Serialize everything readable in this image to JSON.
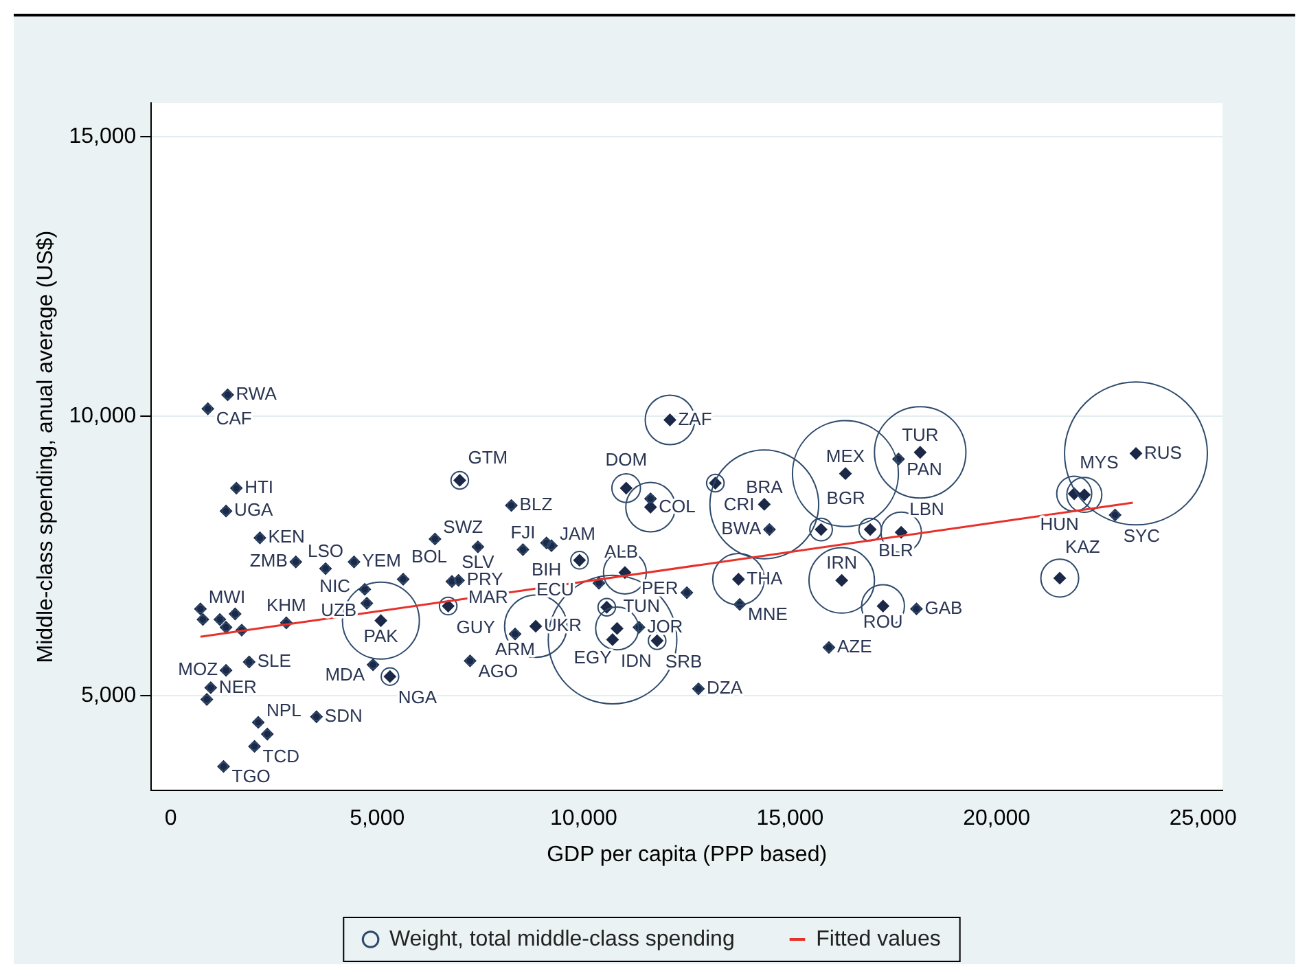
{
  "chart_data": {
    "type": "bubble",
    "xlabel": "GDP per capita (PPP based)",
    "ylabel": "Middle-class spending, anual average (US$)",
    "xlim": [
      -470,
      25470
    ],
    "xticks": [
      {
        "value": 0,
        "label": "0"
      },
      {
        "value": 5000,
        "label": "5,000"
      },
      {
        "value": 10000,
        "label": "10,000"
      },
      {
        "value": 15000,
        "label": "15,000"
      },
      {
        "value": 20000,
        "label": "20,000"
      },
      {
        "value": 25000,
        "label": "25,000"
      }
    ],
    "ylim": [
      3300,
      15600
    ],
    "yticks": [
      {
        "value": 5000,
        "label": "5,000"
      },
      {
        "value": 10000,
        "label": "10,000"
      },
      {
        "value": 15000,
        "label": "15,000"
      }
    ],
    "grid": "y",
    "legend": "bottom",
    "series": [
      {
        "name": "Weight, total middle-class spending",
        "color": "#2e4a6b",
        "x": [
          1380,
          900,
          1590,
          1340,
          2160,
          3030,
          3750,
          4440,
          720,
          780,
          1190,
          1340,
          1560,
          1720,
          2800,
          4750,
          5090,
          4900,
          5310,
          7250,
          3530,
          2120,
          2030,
          2340,
          1280,
          970,
          875,
          1340,
          1900,
          7000,
          8250,
          6400,
          7440,
          8530,
          9220,
          9100,
          9900,
          5630,
          4700,
          6970,
          6810,
          6720,
          8340,
          8840,
          10700,
          10370,
          10560,
          11000,
          10810,
          11340,
          11780,
          12500,
          12780,
          12090,
          11030,
          11620,
          11620,
          13190,
          14375,
          14500,
          13750,
          13780,
          16250,
          15750,
          17250,
          18060,
          15940,
          16940,
          17690,
          16340,
          17625,
          18150,
          21530,
          21880,
          22125,
          22870,
          23375
        ],
        "values": [
          10380,
          10130,
          8710,
          8300,
          7820,
          7390,
          7270,
          7390,
          6550,
          6360,
          6360,
          6220,
          6460,
          6170,
          6300,
          6650,
          6340,
          5550,
          5340,
          5620,
          4620,
          4520,
          4090,
          4310,
          3730,
          5140,
          4930,
          5450,
          5600,
          8850,
          8400,
          7800,
          7660,
          7610,
          7680,
          7730,
          7420,
          7080,
          6900,
          7060,
          7040,
          6600,
          6100,
          6240,
          6000,
          7010,
          6580,
          7200,
          6200,
          6220,
          5980,
          6840,
          5120,
          9930,
          8710,
          8370,
          8520,
          8800,
          8420,
          7970,
          7080,
          6630,
          7060,
          7970,
          6600,
          6550,
          5860,
          7970,
          7920,
          8970,
          9230,
          9350,
          7100,
          8610,
          8590,
          8230,
          9330
        ],
        "sizes": [
          0.003,
          0.003,
          0.003,
          0.003,
          0.003,
          0.003,
          0.003,
          0.003,
          0.003,
          0.003,
          0.003,
          0.003,
          0.003,
          0.003,
          0.003,
          0.003,
          0.29,
          0.003,
          0.015,
          0.003,
          0.003,
          0.003,
          0.003,
          0.003,
          0.003,
          0.003,
          0.003,
          0.003,
          0.003,
          0.015,
          0.003,
          0.003,
          0.003,
          0.003,
          0.003,
          0.003,
          0.015,
          0.003,
          0.003,
          0.003,
          0.003,
          0.015,
          0.003,
          0.19,
          0.81,
          0.003,
          0.015,
          0.09,
          0.09,
          0.003,
          0.015,
          0.003,
          0.003,
          0.12,
          0.04,
          0.12,
          0.003,
          0.015,
          0.58,
          0.003,
          0.13,
          0.003,
          0.21,
          0.025,
          0.09,
          0.003,
          0.003,
          0.025,
          0.08,
          0.55,
          0.003,
          0.41,
          0.07,
          0.06,
          0.06,
          0.003,
          1
        ],
        "value_labels": [
          "RWA",
          "CAF",
          "HTI",
          "UGA",
          "KEN",
          "ZMB",
          "LSO",
          "YEM",
          "MWI",
          null,
          null,
          null,
          null,
          null,
          "KHM",
          "NIC",
          "PAK",
          "MDA",
          "NGA",
          "AGO",
          "SDN",
          "NPL",
          "TCD",
          null,
          "TGO",
          "NER",
          null,
          "MOZ",
          "SLE",
          "GTM",
          "BLZ",
          "SWZ",
          "SLV",
          "FJI",
          "JAM",
          "BIH",
          "ECU",
          "BOL",
          "UZB",
          "PRY",
          "MAR",
          "GUY",
          "ARM",
          "UKR",
          "IDN",
          "ALB",
          "TUN",
          "PER",
          "EGY",
          "JOR",
          "SRB",
          null,
          "DZA",
          "ZAF",
          "DOM",
          "COL",
          null,
          "CRI",
          "BRA",
          "BWA",
          "THA",
          "MNE",
          "IRN",
          "BGR",
          "ROU",
          "GAB",
          "AZE",
          "BLR",
          "LBN",
          "MEX",
          "PAN",
          "TUR",
          "KAZ",
          "MYS",
          "HUN",
          "SYC",
          "RUS"
        ]
      },
      {
        "type": "line",
        "name": "Fitted values",
        "color": "#e8302a",
        "x": [
          720,
          23300
        ],
        "values": [
          6050,
          8450
        ]
      }
    ]
  }
}
